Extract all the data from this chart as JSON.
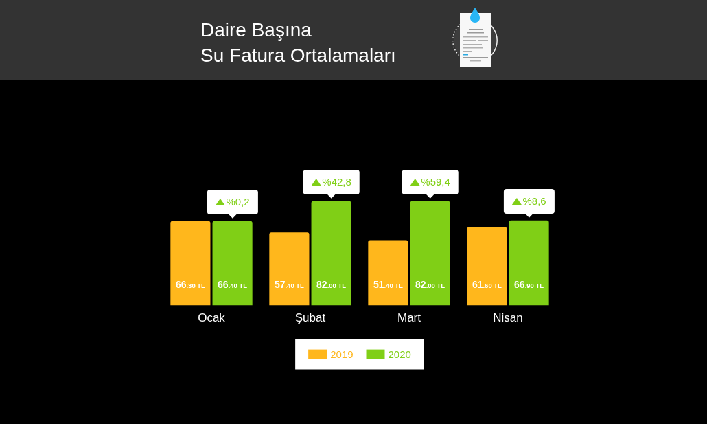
{
  "chart_data": {
    "type": "bar",
    "title": "Daire Başına\nSu Fatura Ortalamaları",
    "categories": [
      "Ocak",
      "Şubat",
      "Mart",
      "Nisan"
    ],
    "series": [
      {
        "name": "2019",
        "color": "#ffb71c",
        "values": [
          66.3,
          57.4,
          51.4,
          61.6
        ],
        "value_labels": [
          "66.30 TL",
          "57.40 TL",
          "51.40 TL",
          "61.60 TL"
        ]
      },
      {
        "name": "2020",
        "color": "#80cf16",
        "values": [
          66.4,
          82,
          82,
          66.9
        ],
        "value_labels": [
          "66.40 TL",
          "82.00 TL",
          "82.00 TL",
          "66.90 TL"
        ]
      }
    ],
    "annotations": [
      "%0,2",
      "%42,8",
      "%59,4",
      "%8,6"
    ],
    "legend": "bottom",
    "tick_labels": "x"
  }
}
